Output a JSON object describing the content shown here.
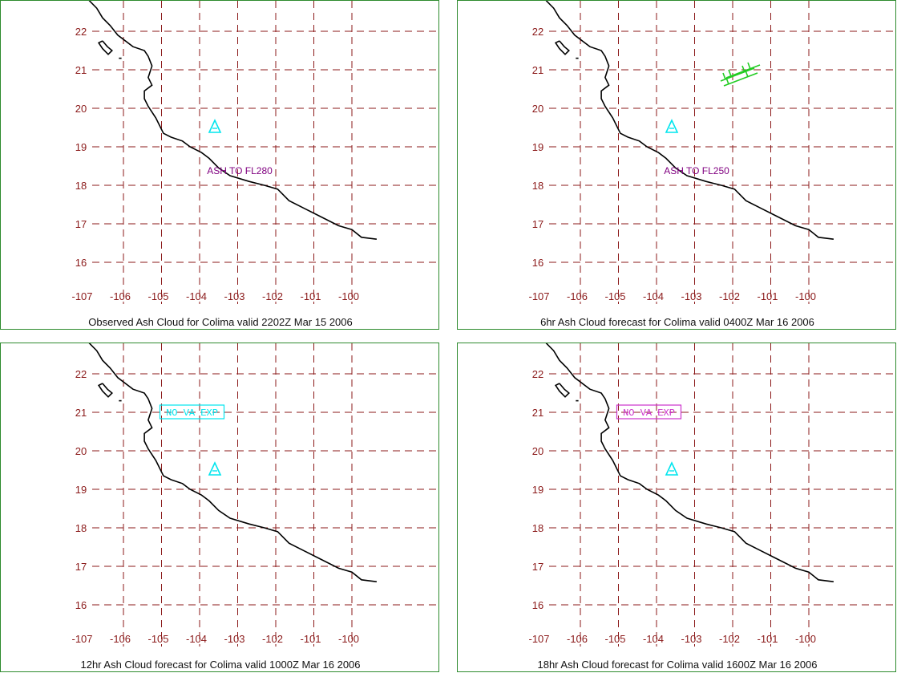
{
  "colors": {
    "grid": "#8b1a1a",
    "tick_labels": "#8b1a1a",
    "coastline": "#000000",
    "ash_label": "#800080",
    "volcano": "#00e5ee",
    "cyan_box": "#00e5ee",
    "magenta_box": "#cc33cc",
    "wind_barbs": "#22cc22",
    "panel_border": "#2e8b2e"
  },
  "icons": {
    "volcano": "volcano-triangle-icon",
    "wind": "wind-barb-icon"
  },
  "axes": {
    "lon_ticks": [
      "-107",
      "-106",
      "-105",
      "-104",
      "-103",
      "-102",
      "-101",
      "-100"
    ],
    "lat_ticks": [
      "22",
      "21",
      "20",
      "19",
      "18",
      "17",
      "16"
    ]
  },
  "panels": [
    {
      "caption": "Observed Ash Cloud for Colima valid 2202Z Mar 15 2006",
      "annotation": "ASH TO FL280",
      "annotation_style": "ash",
      "annotation_pos": [
        -103.2,
        18.4
      ]
    },
    {
      "caption": "6hr Ash Cloud forecast for Colima valid 0400Z Mar 16 2006",
      "annotation": "ASH TO FL250",
      "annotation_style": "ash",
      "annotation_pos": [
        -103.2,
        18.4
      ],
      "wind_barbs": true
    },
    {
      "caption": "12hr Ash Cloud forecast for Colima valid 1000Z Mar 16 2006",
      "annotation": "NO VA EXP",
      "annotation_style": "cyan_box",
      "annotation_pos": [
        -104.2,
        21.0
      ]
    },
    {
      "caption": "18hr Ash Cloud forecast for Colima valid 1600Z Mar 16 2006",
      "annotation": "NO VA EXP",
      "annotation_style": "magenta_box",
      "annotation_pos": [
        -104.2,
        21.0
      ]
    }
  ],
  "volcano_location": [
    -103.6,
    19.5
  ],
  "coastline": [
    [
      -106.9,
      22.8
    ],
    [
      -106.7,
      22.6
    ],
    [
      -106.55,
      22.35
    ],
    [
      -106.35,
      22.15
    ],
    [
      -106.15,
      21.9
    ],
    [
      -105.75,
      21.6
    ],
    [
      -105.45,
      21.5
    ],
    [
      -105.35,
      21.35
    ],
    [
      -105.25,
      21.1
    ],
    [
      -105.35,
      20.8
    ],
    [
      -105.25,
      20.6
    ],
    [
      -105.45,
      20.45
    ],
    [
      -105.45,
      20.25
    ],
    [
      -105.35,
      20.05
    ],
    [
      -105.15,
      19.75
    ],
    [
      -104.95,
      19.35
    ],
    [
      -104.75,
      19.25
    ],
    [
      -104.45,
      19.15
    ],
    [
      -104.25,
      19.0
    ],
    [
      -103.95,
      18.85
    ],
    [
      -103.75,
      18.7
    ],
    [
      -103.5,
      18.45
    ],
    [
      -103.2,
      18.25
    ],
    [
      -102.7,
      18.1
    ],
    [
      -102.3,
      18.0
    ],
    [
      -101.95,
      17.9
    ],
    [
      -101.65,
      17.6
    ],
    [
      -101.25,
      17.4
    ],
    [
      -100.85,
      17.2
    ],
    [
      -100.35,
      16.95
    ],
    [
      -100.0,
      16.85
    ],
    [
      -99.75,
      16.65
    ],
    [
      -99.35,
      16.6
    ]
  ],
  "islands": [
    [
      [
        -106.55,
        21.75
      ],
      [
        -106.42,
        21.6
      ],
      [
        -106.3,
        21.5
      ],
      [
        -106.4,
        21.4
      ],
      [
        -106.55,
        21.55
      ],
      [
        -106.65,
        21.7
      ],
      [
        -106.55,
        21.75
      ]
    ],
    [
      [
        -106.12,
        21.3
      ],
      [
        -106.05,
        21.3
      ]
    ]
  ]
}
